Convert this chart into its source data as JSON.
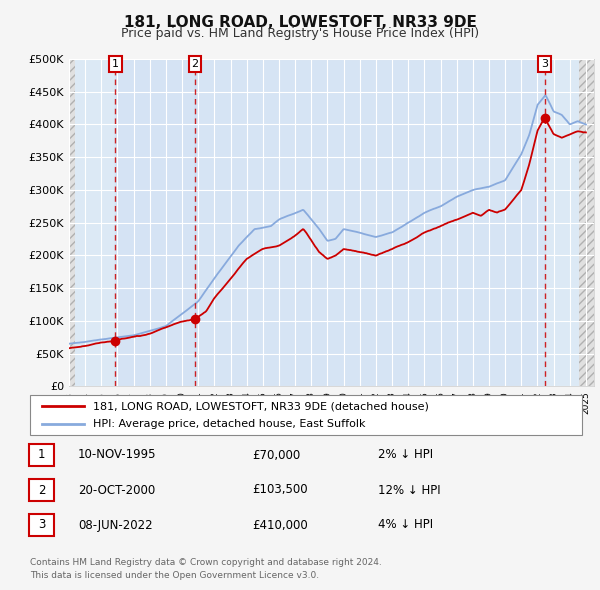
{
  "title": "181, LONG ROAD, LOWESTOFT, NR33 9DE",
  "subtitle": "Price paid vs. HM Land Registry's House Price Index (HPI)",
  "ylim": [
    0,
    500000
  ],
  "yticks": [
    0,
    50000,
    100000,
    150000,
    200000,
    250000,
    300000,
    350000,
    400000,
    450000,
    500000
  ],
  "ytick_labels": [
    "£0",
    "£50K",
    "£100K",
    "£150K",
    "£200K",
    "£250K",
    "£300K",
    "£350K",
    "£400K",
    "£450K",
    "£500K"
  ],
  "bg_color": "#f5f5f5",
  "plot_bg_color": "#dce9f5",
  "grid_color": "#ffffff",
  "red_line_color": "#cc0000",
  "blue_line_color": "#88aadd",
  "sale_marker_color": "#cc0000",
  "sale_dates_num": [
    1995.87,
    2000.8,
    2022.44
  ],
  "sale_prices": [
    70000,
    103500,
    410000
  ],
  "sale_labels": [
    "1",
    "2",
    "3"
  ],
  "legend_label_red": "181, LONG ROAD, LOWESTOFT, NR33 9DE (detached house)",
  "legend_label_blue": "HPI: Average price, detached house, East Suffolk",
  "table_rows": [
    [
      "1",
      "10-NOV-1995",
      "£70,000",
      "2% ↓ HPI"
    ],
    [
      "2",
      "20-OCT-2000",
      "£103,500",
      "12% ↓ HPI"
    ],
    [
      "3",
      "08-JUN-2022",
      "£410,000",
      "4% ↓ HPI"
    ]
  ],
  "footnote": "Contains HM Land Registry data © Crown copyright and database right 2024.\nThis data is licensed under the Open Government Licence v3.0.",
  "xmin": 1993.0,
  "xmax": 2025.5
}
